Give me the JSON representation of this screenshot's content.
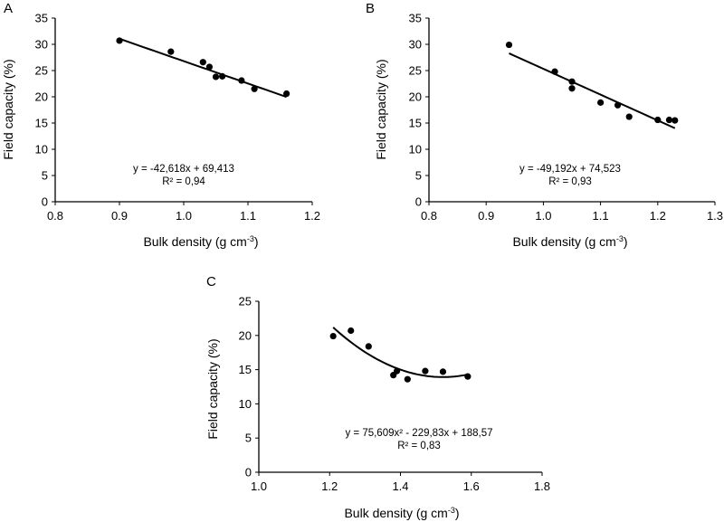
{
  "chart_data": [
    {
      "panel": "A",
      "type": "scatter",
      "xlabel": "Bulk density (g cm",
      "xlabel_sup": "-3",
      "xlabel_end": ")",
      "ylabel": "Field capacity (%)",
      "xlim": [
        0.8,
        1.2
      ],
      "ylim": [
        0,
        35
      ],
      "xticks": [
        "0.8",
        "0.9",
        "1.0",
        "1.1",
        "1.2"
      ],
      "xtick_values": [
        0.8,
        0.9,
        1.0,
        1.1,
        1.2
      ],
      "yticks": [
        "0",
        "5",
        "10",
        "15",
        "20",
        "25",
        "30",
        "35"
      ],
      "ytick_values": [
        0,
        5,
        10,
        15,
        20,
        25,
        30,
        35
      ],
      "points": [
        [
          0.9,
          30.7
        ],
        [
          0.98,
          28.6
        ],
        [
          1.03,
          26.6
        ],
        [
          1.04,
          25.7
        ],
        [
          1.05,
          23.8
        ],
        [
          1.06,
          23.9
        ],
        [
          1.09,
          23.1
        ],
        [
          1.11,
          21.5
        ],
        [
          1.16,
          20.6
        ]
      ],
      "fit": {
        "type": "linear",
        "coef": [
          -42.618,
          69.413
        ],
        "x_range": [
          0.9,
          1.16
        ]
      },
      "equation": "y = -42,618x + 69,413",
      "r2": "R² = 0,94"
    },
    {
      "panel": "B",
      "type": "scatter",
      "xlabel": "Bulk density (g cm",
      "xlabel_sup": "-3",
      "xlabel_end": ")",
      "ylabel": "Field capacity (%)",
      "xlim": [
        0.8,
        1.3
      ],
      "ylim": [
        0,
        35
      ],
      "xticks": [
        "0.8",
        "0.9",
        "1.0",
        "1.1",
        "1.2",
        "1.3"
      ],
      "xtick_values": [
        0.8,
        0.9,
        1.0,
        1.1,
        1.2,
        1.3
      ],
      "yticks": [
        "0",
        "5",
        "10",
        "15",
        "20",
        "25",
        "30",
        "35"
      ],
      "ytick_values": [
        0,
        5,
        10,
        15,
        20,
        25,
        30,
        35
      ],
      "points": [
        [
          0.94,
          29.9
        ],
        [
          1.02,
          24.8
        ],
        [
          1.05,
          22.9
        ],
        [
          1.05,
          21.6
        ],
        [
          1.1,
          18.9
        ],
        [
          1.13,
          18.4
        ],
        [
          1.15,
          16.2
        ],
        [
          1.2,
          15.6
        ],
        [
          1.22,
          15.6
        ],
        [
          1.23,
          15.5
        ]
      ],
      "fit": {
        "type": "linear",
        "coef": [
          -49.192,
          74.523
        ],
        "x_range": [
          0.94,
          1.23
        ]
      },
      "equation": "y = -49,192x + 74,523",
      "r2": "R² = 0,93"
    },
    {
      "panel": "C",
      "type": "scatter",
      "xlabel": "Bulk density (g cm",
      "xlabel_sup": "-3",
      "xlabel_end": ")",
      "ylabel": "Field capacity (%)",
      "xlim": [
        1.0,
        1.8
      ],
      "ylim": [
        0,
        25
      ],
      "xticks": [
        "1.0",
        "1.2",
        "1.4",
        "1.6",
        "1.8"
      ],
      "xtick_values": [
        1.0,
        1.2,
        1.4,
        1.6,
        1.8
      ],
      "yticks": [
        "0",
        "5",
        "10",
        "15",
        "20",
        "25"
      ],
      "ytick_values": [
        0,
        5,
        10,
        15,
        20,
        25
      ],
      "points": [
        [
          1.21,
          19.9
        ],
        [
          1.26,
          20.7
        ],
        [
          1.31,
          18.4
        ],
        [
          1.38,
          14.2
        ],
        [
          1.39,
          14.8
        ],
        [
          1.42,
          13.6
        ],
        [
          1.47,
          14.8
        ],
        [
          1.52,
          14.7
        ],
        [
          1.59,
          14.0
        ]
      ],
      "fit": {
        "type": "quadratic",
        "coef": [
          75.609,
          -229.83,
          188.57
        ],
        "x_range": [
          1.21,
          1.59
        ]
      },
      "equation": "y = 75,609x² - 229,83x + 188,57",
      "r2": "R² = 0,83"
    }
  ]
}
